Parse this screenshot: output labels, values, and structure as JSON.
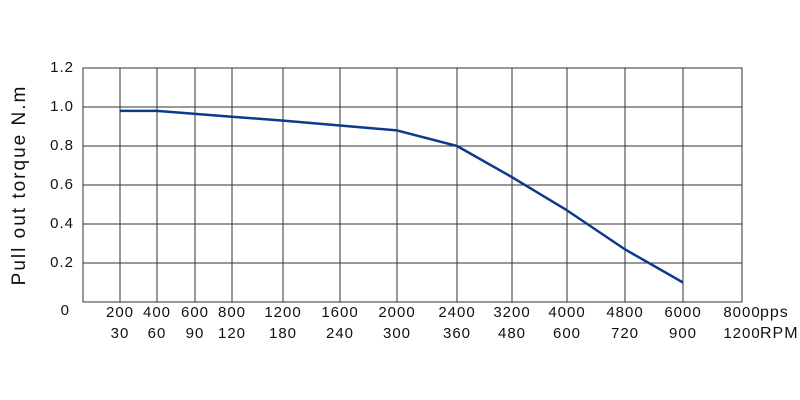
{
  "chart_data": {
    "type": "line",
    "y_label": "Pull out torque N.m",
    "x_label": "pps",
    "x2_label": "RPM",
    "categories": [
      "200",
      "400",
      "600",
      "800",
      "1200",
      "1600",
      "2000",
      "2400",
      "3200",
      "4000",
      "4800",
      "6000",
      "8000"
    ],
    "categories_rpm": [
      "30",
      "60",
      "90",
      "120",
      "180",
      "240",
      "300",
      "360",
      "480",
      "600",
      "720",
      "900",
      "1200"
    ],
    "series": [
      {
        "color": "#0d3a8c",
        "values": [
          0.98,
          0.98,
          0.965,
          0.95,
          0.93,
          0.905,
          0.88,
          0.8,
          0.64,
          0.47,
          0.27,
          0.1,
          null
        ]
      }
    ],
    "ylim": [
      0,
      1.2
    ],
    "yticks": [
      0,
      {
        "value": 0.2,
        "label": "0.2"
      },
      {
        "value": 0.4,
        "label": "0.4"
      },
      {
        "value": 0.6,
        "label": "0.6"
      },
      {
        "value": 0.8,
        "label": "0.8"
      },
      {
        "value": 1.0,
        "label": "1.0"
      },
      {
        "value": 1.2,
        "label": "1.2"
      }
    ],
    "grid": true
  }
}
